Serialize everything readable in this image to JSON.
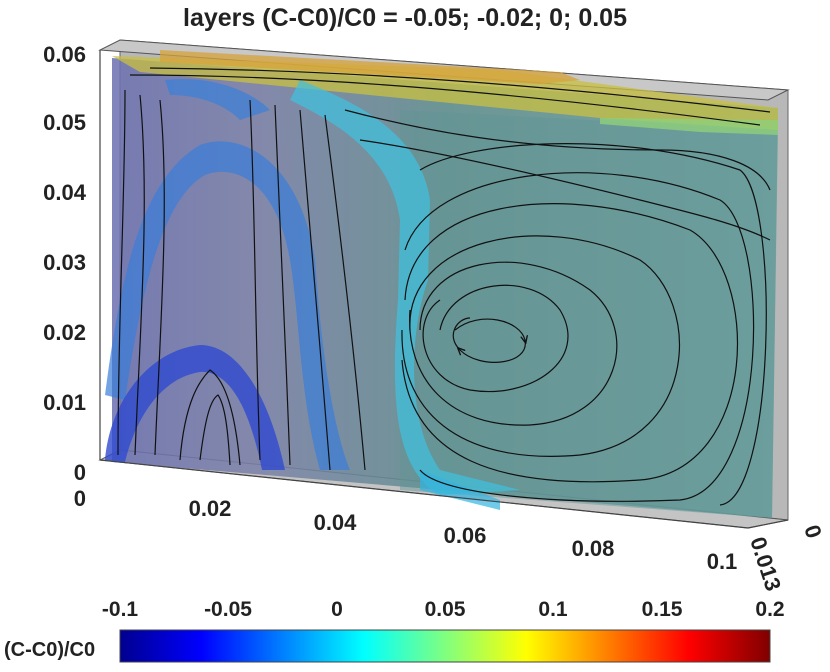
{
  "chart_data": {
    "type": "3d-slice-streamlines-isosurfaces",
    "title": "layers (C-C0)/C0 = -0.05; -0.02; 0; 0.05",
    "isosurface_levels": [
      -0.05,
      -0.02,
      0,
      0.05
    ],
    "x_axis": {
      "ticks": [
        "0",
        "0.02",
        "0.04",
        "0.06",
        "0.08",
        "0.1"
      ],
      "range": [
        0,
        0.1
      ]
    },
    "y_axis": {
      "ticks": [
        "0",
        "0.013"
      ],
      "range": [
        0,
        0.013
      ]
    },
    "z_axis": {
      "ticks": [
        "0",
        "0.01",
        "0.02",
        "0.03",
        "0.04",
        "0.05",
        "0.06"
      ],
      "range": [
        0,
        0.06
      ]
    },
    "vortex_center": {
      "x": 0.055,
      "z": 0.02
    },
    "colorbar": {
      "label": "(C-C0)/C0",
      "ticks": [
        "-0.1",
        "-0.05",
        "0",
        "0.05",
        "0.1",
        "0.15",
        "0.2"
      ],
      "range": [
        -0.1,
        0.2
      ],
      "colormap": "jet"
    },
    "grid": false
  }
}
